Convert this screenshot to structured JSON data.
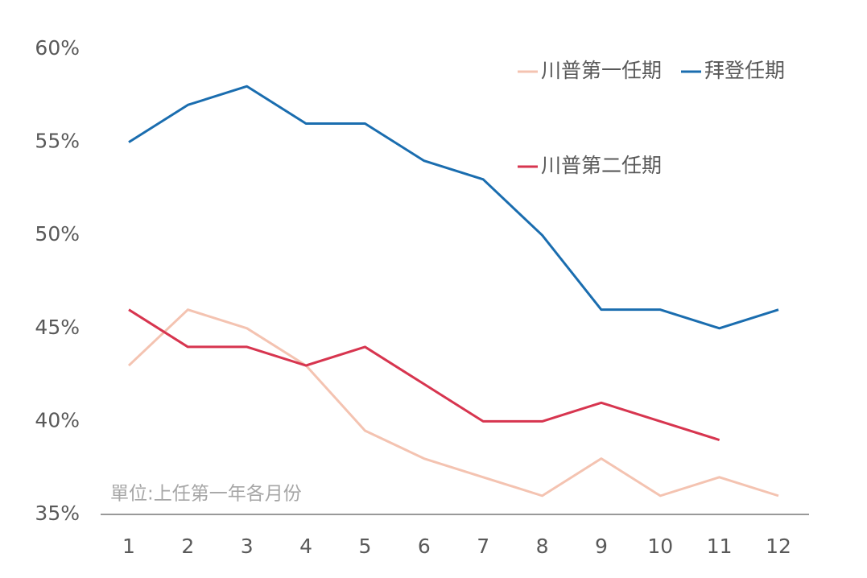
{
  "chart_data": {
    "type": "line",
    "categories": [
      "1",
      "2",
      "3",
      "4",
      "5",
      "6",
      "7",
      "8",
      "9",
      "10",
      "11",
      "12"
    ],
    "series": [
      {
        "name": "川普第一任期",
        "color": "#f4c3b1",
        "values": [
          43,
          46,
          45,
          43,
          39.5,
          38,
          37,
          36,
          38,
          36,
          37,
          36
        ]
      },
      {
        "name": "拜登任期",
        "color": "#1a6daf",
        "values": [
          55,
          57,
          58,
          56,
          56,
          54,
          53,
          50,
          46,
          46,
          45,
          46
        ]
      },
      {
        "name": "川普第二任期",
        "color": "#d7354f",
        "values": [
          46,
          44,
          44,
          43,
          44,
          42,
          40,
          40,
          41,
          40,
          39,
          null
        ]
      }
    ],
    "ylim": [
      35,
      60
    ],
    "yticks": [
      {
        "value": 35,
        "label": "35%"
      },
      {
        "value": 40,
        "label": "40%"
      },
      {
        "value": 45,
        "label": "45%"
      },
      {
        "value": 50,
        "label": "50%"
      },
      {
        "value": 55,
        "label": "55%"
      },
      {
        "value": 60,
        "label": "60%"
      }
    ],
    "annotation": "單位:上任第一年各月份",
    "grid": false
  }
}
